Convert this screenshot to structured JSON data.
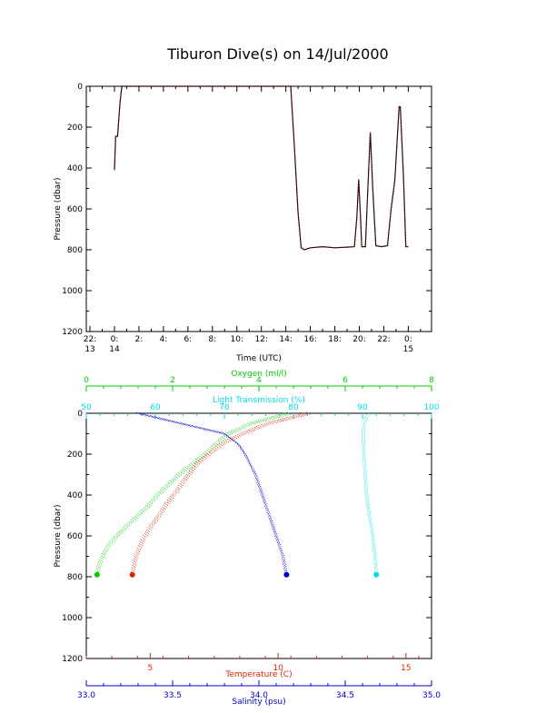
{
  "page": {
    "title": "Tiburon Dive(s) on 14/Jul/2000"
  },
  "chart_data": [
    {
      "type": "line",
      "title": "Tiburon Dive(s) on 14/Jul/2000",
      "xlabel": "Time (UTC)",
      "ylabel": "Pressure (dbar)",
      "x_tick_labels": [
        {
          "t": -2,
          "line1": "22:",
          "line2": "13"
        },
        {
          "t": 0,
          "line1": "0:",
          "line2": "14"
        },
        {
          "t": 2,
          "line1": "2:",
          "line2": ""
        },
        {
          "t": 4,
          "line1": "4:",
          "line2": ""
        },
        {
          "t": 6,
          "line1": "6:",
          "line2": ""
        },
        {
          "t": 8,
          "line1": "8:",
          "line2": ""
        },
        {
          "t": 10,
          "line1": "10:",
          "line2": ""
        },
        {
          "t": 12,
          "line1": "12:",
          "line2": ""
        },
        {
          "t": 14,
          "line1": "14:",
          "line2": ""
        },
        {
          "t": 16,
          "line1": "16:",
          "line2": ""
        },
        {
          "t": 18,
          "line1": "18:",
          "line2": ""
        },
        {
          "t": 20,
          "line1": "20:",
          "line2": ""
        },
        {
          "t": 22,
          "line1": "22:",
          "line2": ""
        },
        {
          "t": 24,
          "line1": "0:",
          "line2": "15"
        }
      ],
      "y_ticks": [
        0,
        200,
        400,
        600,
        800,
        1000,
        1200
      ],
      "ylim": [
        1200,
        0
      ],
      "xlim_hours": [
        -2.3,
        25.9
      ],
      "colors": {
        "line": "#000000",
        "points": "#cc2222"
      },
      "series": [
        {
          "points": [
            [
              0.0,
              410
            ],
            [
              0.1,
              245
            ],
            [
              0.25,
              245
            ],
            [
              0.45,
              80
            ],
            [
              0.6,
              0
            ],
            [
              14.4,
              0
            ],
            [
              14.7,
              300
            ],
            [
              15.0,
              620
            ],
            [
              15.25,
              790
            ],
            [
              15.5,
              800
            ],
            [
              16.0,
              790
            ],
            [
              17.0,
              785
            ],
            [
              18.0,
              790
            ],
            [
              19.0,
              787
            ],
            [
              19.6,
              785
            ],
            [
              19.8,
              640
            ],
            [
              19.95,
              455
            ],
            [
              20.1,
              640
            ],
            [
              20.2,
              785
            ],
            [
              20.5,
              785
            ],
            [
              20.7,
              500
            ],
            [
              20.9,
              225
            ],
            [
              21.1,
              500
            ],
            [
              21.35,
              780
            ],
            [
              21.8,
              785
            ],
            [
              22.3,
              780
            ],
            [
              22.6,
              600
            ],
            [
              22.9,
              460
            ],
            [
              23.25,
              100
            ],
            [
              23.35,
              100
            ],
            [
              23.6,
              430
            ],
            [
              23.8,
              785
            ],
            [
              24.0,
              785
            ]
          ]
        }
      ]
    },
    {
      "type": "scatter",
      "ylabel": "Pressure (dbar)",
      "y_ticks": [
        0,
        200,
        400,
        600,
        800,
        1000,
        1200
      ],
      "ylim": [
        1200,
        0
      ],
      "axes": {
        "oxygen": {
          "label": "Oxygen (ml/l)",
          "range": [
            0,
            8
          ],
          "ticks": [
            0,
            2,
            4,
            6,
            8
          ],
          "color": "#00cc00"
        },
        "light_transmission": {
          "label": "Light Transmission (%)",
          "range": [
            50,
            100
          ],
          "ticks": [
            50,
            60,
            70,
            80,
            90,
            100
          ],
          "color": "#00dddd"
        },
        "temperature": {
          "label": "Temperature (C)",
          "range": [
            2.5,
            16
          ],
          "ticks": [
            5,
            10,
            15
          ],
          "color": "#dd2200"
        },
        "salinity": {
          "label": "Salinity (psu)",
          "range": [
            33.0,
            35.0
          ],
          "ticks": [
            "33.0",
            "33.5",
            "34.0",
            "34.5",
            "35.0"
          ],
          "color": "#0000cc"
        }
      },
      "series": [
        {
          "color": "#00cc00",
          "axis": "oxygen",
          "profile": [
            [
              0,
              4.7
            ],
            [
              50,
              3.8
            ],
            [
              100,
              3.3
            ],
            [
              150,
              3.0
            ],
            [
              200,
              2.75
            ],
            [
              250,
              2.45
            ],
            [
              300,
              2.15
            ],
            [
              350,
              1.9
            ],
            [
              400,
              1.65
            ],
            [
              450,
              1.45
            ],
            [
              500,
              1.2
            ],
            [
              550,
              0.95
            ],
            [
              600,
              0.7
            ],
            [
              650,
              0.5
            ],
            [
              700,
              0.38
            ],
            [
              750,
              0.28
            ],
            [
              790,
              0.25
            ]
          ]
        },
        {
          "color": "#dd2200",
          "axis": "temperature",
          "profile": [
            [
              0,
              11.2
            ],
            [
              50,
              9.6
            ],
            [
              100,
              8.6
            ],
            [
              150,
              7.8
            ],
            [
              200,
              7.3
            ],
            [
              250,
              6.8
            ],
            [
              300,
              6.5
            ],
            [
              350,
              6.2
            ],
            [
              400,
              5.9
            ],
            [
              450,
              5.6
            ],
            [
              500,
              5.35
            ],
            [
              550,
              5.05
            ],
            [
              600,
              4.8
            ],
            [
              650,
              4.6
            ],
            [
              700,
              4.45
            ],
            [
              750,
              4.35
            ],
            [
              790,
              4.3
            ]
          ]
        },
        {
          "color": "#0000cc",
          "axis": "salinity",
          "profile": [
            [
              0,
              33.3
            ],
            [
              50,
              33.55
            ],
            [
              100,
              33.8
            ],
            [
              150,
              33.88
            ],
            [
              200,
              33.92
            ],
            [
              250,
              33.95
            ],
            [
              300,
              33.98
            ],
            [
              350,
              34.0
            ],
            [
              400,
              34.02
            ],
            [
              450,
              34.04
            ],
            [
              500,
              34.06
            ],
            [
              550,
              34.08
            ],
            [
              600,
              34.1
            ],
            [
              650,
              34.12
            ],
            [
              700,
              34.14
            ],
            [
              750,
              34.15
            ],
            [
              790,
              34.16
            ]
          ]
        },
        {
          "color": "#00dddd",
          "axis": "light_transmission",
          "profile": [
            [
              0,
              91
            ],
            [
              20,
              90.5
            ],
            [
              50,
              90.2
            ],
            [
              100,
              90.1
            ],
            [
              200,
              90.2
            ],
            [
              300,
              90.4
            ],
            [
              400,
              90.6
            ],
            [
              500,
              91.0
            ],
            [
              600,
              91.5
            ],
            [
              700,
              91.8
            ],
            [
              790,
              92.0
            ]
          ]
        }
      ]
    }
  ]
}
